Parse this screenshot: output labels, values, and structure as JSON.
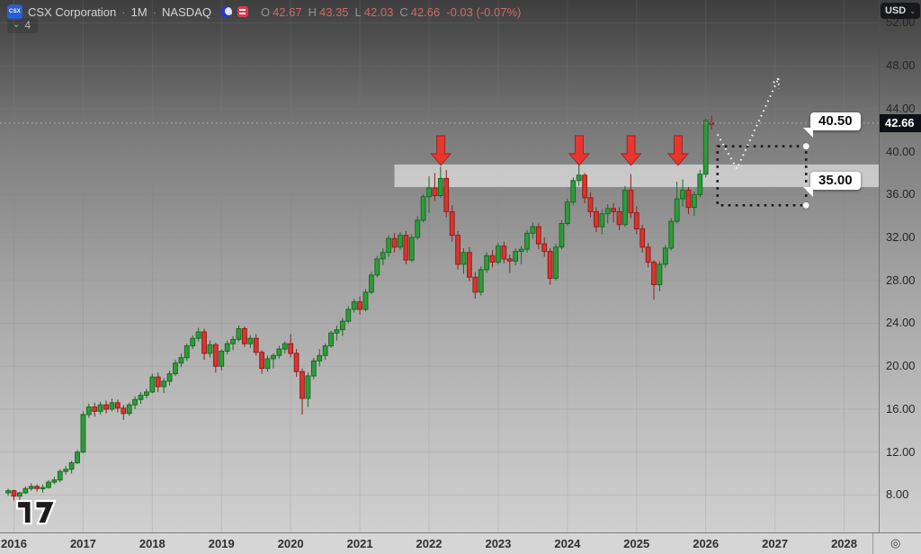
{
  "header": {
    "symbol_logo_text": "CSX",
    "symbol_name": "CSX Corporation",
    "separator": "·",
    "timeframe": "1M",
    "exchange": "NASDAQ",
    "ohlc": {
      "o_label": "O",
      "o": "42.67",
      "h_label": "H",
      "h": "43.35",
      "l_label": "L",
      "l": "42.03",
      "c_label": "C",
      "c": "42.66",
      "change": "-0.03 (-0.07%)"
    },
    "indicator_count": "4"
  },
  "icons": {
    "chevron_down": "⌄",
    "settings": "◎",
    "currency_chevron": "⌄"
  },
  "price_scale": {
    "currency_button": "USD",
    "ticks": [
      "52.00",
      "48.00",
      "44.00",
      "40.00",
      "36.00",
      "32.00",
      "28.00",
      "24.00",
      "20.00",
      "16.00",
      "12.00",
      "8.00"
    ],
    "last_price_label": "42.66"
  },
  "time_scale": {
    "years": [
      "2016",
      "2017",
      "2018",
      "2019",
      "2020",
      "2021",
      "2022",
      "2023",
      "2024",
      "2025",
      "2026",
      "2027",
      "2028"
    ]
  },
  "callouts": {
    "upper": "40.50",
    "lower": "35.00"
  },
  "chart_data": {
    "type": "candlestick",
    "title": "CSX Corporation 1M NASDAQ",
    "interval": "1 month",
    "x_axis": {
      "start_month": "2015-12",
      "years": [
        2016,
        2017,
        2018,
        2019,
        2020,
        2021,
        2022,
        2023,
        2024,
        2025,
        2026,
        2027,
        2028
      ]
    },
    "y_ticks": [
      8,
      12,
      16,
      20,
      24,
      28,
      32,
      36,
      40,
      44,
      48,
      52
    ],
    "ylim": [
      6.8,
      53.3
    ],
    "last_price": 42.66,
    "colors": {
      "up": "#2f9b3a",
      "up_border": "#1a6b24",
      "down": "#d9352f",
      "down_border": "#8f1f1b",
      "accent_red": "#e8352e",
      "zone_fill": "rgba(255,255,255,0.55)"
    },
    "ohlc_series": [
      [
        8.2,
        8.6,
        7.9,
        8.4
      ],
      [
        8.4,
        8.5,
        7.5,
        7.9
      ],
      [
        7.9,
        8.3,
        7.3,
        8.2
      ],
      [
        8.2,
        8.8,
        8.1,
        8.6
      ],
      [
        8.6,
        9.1,
        8.4,
        8.8
      ],
      [
        8.8,
        9.0,
        8.3,
        8.6
      ],
      [
        8.6,
        9.0,
        8.2,
        8.7
      ],
      [
        8.7,
        9.4,
        8.6,
        9.2
      ],
      [
        9.2,
        9.7,
        9.0,
        9.4
      ],
      [
        9.4,
        10.4,
        9.2,
        10.2
      ],
      [
        10.2,
        10.7,
        9.9,
        10.4
      ],
      [
        10.4,
        11.2,
        10.0,
        11.0
      ],
      [
        11.0,
        12.2,
        10.9,
        12.0
      ],
      [
        12.0,
        15.8,
        11.9,
        15.5
      ],
      [
        15.5,
        16.5,
        15.2,
        16.2
      ],
      [
        16.2,
        16.6,
        15.3,
        15.8
      ],
      [
        15.8,
        16.7,
        15.5,
        16.4
      ],
      [
        16.4,
        16.8,
        15.6,
        16.0
      ],
      [
        16.0,
        17.0,
        15.8,
        16.6
      ],
      [
        16.6,
        16.9,
        15.7,
        16.1
      ],
      [
        16.1,
        16.4,
        15.0,
        15.6
      ],
      [
        15.6,
        16.6,
        15.4,
        16.4
      ],
      [
        16.4,
        17.2,
        16.0,
        16.9
      ],
      [
        16.9,
        17.6,
        16.5,
        17.3
      ],
      [
        17.3,
        17.9,
        17.0,
        17.6
      ],
      [
        17.6,
        19.3,
        17.5,
        19.0
      ],
      [
        19.0,
        19.4,
        17.6,
        18.1
      ],
      [
        18.1,
        18.9,
        17.5,
        18.6
      ],
      [
        18.6,
        19.6,
        18.2,
        19.3
      ],
      [
        19.3,
        20.6,
        19.1,
        20.3
      ],
      [
        20.3,
        21.2,
        19.9,
        20.8
      ],
      [
        20.8,
        22.1,
        20.5,
        21.9
      ],
      [
        21.9,
        22.9,
        21.6,
        22.6
      ],
      [
        22.6,
        23.6,
        22.3,
        23.2
      ],
      [
        23.2,
        23.5,
        20.6,
        21.2
      ],
      [
        21.2,
        22.4,
        20.8,
        22.0
      ],
      [
        22.0,
        22.2,
        19.4,
        20.0
      ],
      [
        20.0,
        21.6,
        19.6,
        21.4
      ],
      [
        21.4,
        22.4,
        21.1,
        22.1
      ],
      [
        22.1,
        22.8,
        21.5,
        22.5
      ],
      [
        22.5,
        23.8,
        22.3,
        23.5
      ],
      [
        23.5,
        23.7,
        21.8,
        22.1
      ],
      [
        22.1,
        22.9,
        21.7,
        22.6
      ],
      [
        22.6,
        23.0,
        21.0,
        21.3
      ],
      [
        21.3,
        21.5,
        19.3,
        19.8
      ],
      [
        19.8,
        21.0,
        19.5,
        20.7
      ],
      [
        20.7,
        21.2,
        19.8,
        21.0
      ],
      [
        21.0,
        21.9,
        20.7,
        21.6
      ],
      [
        21.6,
        22.3,
        21.2,
        22.1
      ],
      [
        22.1,
        23.0,
        20.8,
        21.2
      ],
      [
        21.2,
        21.6,
        19.0,
        19.5
      ],
      [
        19.5,
        19.8,
        15.5,
        17.0
      ],
      [
        17.0,
        19.4,
        16.2,
        19.1
      ],
      [
        19.1,
        20.8,
        18.8,
        20.5
      ],
      [
        20.5,
        21.6,
        20.0,
        21.0
      ],
      [
        21.0,
        22.1,
        20.6,
        21.9
      ],
      [
        21.9,
        23.3,
        21.7,
        23.1
      ],
      [
        23.1,
        23.8,
        22.4,
        23.4
      ],
      [
        23.4,
        24.5,
        22.8,
        24.2
      ],
      [
        24.2,
        25.6,
        24.0,
        25.3
      ],
      [
        25.3,
        26.3,
        25.0,
        26.0
      ],
      [
        26.0,
        26.5,
        24.8,
        25.3
      ],
      [
        25.3,
        27.2,
        25.1,
        26.9
      ],
      [
        26.9,
        28.8,
        26.7,
        28.5
      ],
      [
        28.5,
        30.3,
        28.3,
        30.0
      ],
      [
        30.0,
        31.0,
        29.4,
        30.6
      ],
      [
        30.6,
        32.2,
        30.2,
        31.9
      ],
      [
        31.9,
        32.4,
        30.6,
        31.1
      ],
      [
        31.1,
        32.5,
        30.8,
        32.2
      ],
      [
        32.2,
        32.6,
        29.5,
        29.9
      ],
      [
        29.9,
        32.3,
        29.7,
        32.0
      ],
      [
        32.0,
        34.0,
        31.8,
        33.6
      ],
      [
        33.6,
        36.0,
        33.4,
        35.8
      ],
      [
        35.8,
        37.7,
        34.3,
        36.6
      ],
      [
        36.6,
        38.0,
        35.4,
        35.9
      ],
      [
        35.9,
        38.6,
        35.7,
        37.5
      ],
      [
        37.5,
        38.3,
        33.9,
        34.4
      ],
      [
        34.4,
        35.0,
        31.6,
        32.2
      ],
      [
        32.2,
        32.6,
        29.0,
        29.5
      ],
      [
        29.5,
        31.0,
        28.6,
        30.6
      ],
      [
        30.6,
        31.1,
        27.9,
        28.3
      ],
      [
        28.3,
        28.8,
        26.3,
        26.9
      ],
      [
        26.9,
        29.3,
        26.6,
        29.0
      ],
      [
        29.0,
        30.6,
        28.7,
        30.3
      ],
      [
        30.3,
        30.8,
        29.2,
        29.7
      ],
      [
        29.7,
        31.5,
        29.5,
        31.2
      ],
      [
        31.2,
        31.6,
        29.6,
        30.0
      ],
      [
        30.0,
        30.4,
        28.7,
        29.8
      ],
      [
        29.8,
        31.0,
        29.4,
        30.7
      ],
      [
        30.7,
        31.2,
        29.5,
        30.9
      ],
      [
        30.9,
        32.7,
        30.6,
        32.4
      ],
      [
        32.4,
        33.4,
        31.9,
        33.0
      ],
      [
        33.0,
        33.3,
        30.9,
        31.4
      ],
      [
        31.4,
        32.0,
        30.2,
        30.7
      ],
      [
        30.7,
        31.0,
        27.6,
        28.2
      ],
      [
        28.2,
        31.4,
        28.0,
        31.1
      ],
      [
        31.1,
        33.6,
        30.9,
        33.3
      ],
      [
        33.3,
        35.6,
        33.1,
        35.3
      ],
      [
        35.3,
        37.6,
        35.0,
        37.3
      ],
      [
        37.3,
        39.7,
        36.8,
        37.8
      ],
      [
        37.8,
        38.0,
        35.2,
        35.7
      ],
      [
        35.7,
        36.2,
        33.9,
        34.4
      ],
      [
        34.4,
        34.8,
        32.5,
        33.0
      ],
      [
        33.0,
        34.6,
        32.3,
        34.2
      ],
      [
        34.2,
        35.1,
        33.3,
        34.7
      ],
      [
        34.7,
        35.2,
        33.4,
        34.4
      ],
      [
        34.4,
        34.8,
        32.7,
        33.2
      ],
      [
        33.2,
        36.8,
        33.0,
        36.4
      ],
      [
        36.4,
        37.9,
        33.8,
        34.3
      ],
      [
        34.3,
        34.9,
        32.3,
        32.8
      ],
      [
        32.8,
        33.2,
        30.6,
        31.1
      ],
      [
        31.1,
        31.5,
        29.2,
        29.7
      ],
      [
        29.7,
        29.9,
        26.2,
        27.6
      ],
      [
        27.6,
        29.8,
        27.0,
        29.5
      ],
      [
        29.5,
        31.3,
        29.2,
        31.0
      ],
      [
        31.0,
        33.8,
        30.8,
        33.5
      ],
      [
        33.5,
        37.2,
        33.3,
        35.6
      ],
      [
        35.6,
        37.4,
        34.9,
        36.4
      ],
      [
        36.4,
        36.7,
        34.2,
        34.8
      ],
      [
        34.8,
        36.3,
        34.0,
        36.0
      ],
      [
        36.0,
        38.3,
        35.7,
        37.9
      ],
      [
        37.9,
        43.1,
        37.6,
        42.9
      ],
      [
        42.67,
        43.35,
        42.03,
        42.66
      ]
    ],
    "annotations": {
      "resistance_zone": {
        "price_top": 38.8,
        "price_bottom": 36.7,
        "from_year": 2021.5,
        "to_year": 2028.6
      },
      "sell_arrows_years": [
        2022.17,
        2024.17,
        2024.92,
        2025.6
      ],
      "target_box": {
        "from_year": 2026.17,
        "to_year": 2027.45,
        "price_top": 40.5,
        "price_bottom": 35.0
      },
      "projection_path": [
        [
          2026.17,
          41.6
        ],
        [
          2026.45,
          38.4
        ],
        [
          2027.05,
          46.8
        ]
      ]
    }
  }
}
